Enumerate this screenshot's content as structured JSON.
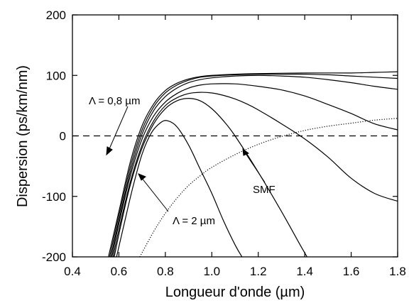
{
  "chart_data": {
    "type": "line",
    "title": "",
    "xlabel": "Longueur d'onde (µm)",
    "ylabel": "Dispersion (ps/km/nm)",
    "xlim": [
      0.4,
      1.8
    ],
    "ylim": [
      -200,
      200
    ],
    "xticks": [
      "0.4",
      "0.6",
      "0.8",
      "1.0",
      "1.2",
      "1.4",
      "1.6",
      "1.8"
    ],
    "yticks": [
      "-200",
      "-100",
      "0",
      "100",
      "200"
    ],
    "grid": false,
    "legend": "none",
    "series": [
      {
        "style": "solid",
        "points": [
          [
            0.59,
            -200
          ],
          [
            0.62,
            -150
          ],
          [
            0.66,
            -85
          ],
          [
            0.7,
            -30
          ],
          [
            0.74,
            5
          ],
          [
            0.78,
            22
          ],
          [
            0.81,
            25
          ],
          [
            0.85,
            15
          ],
          [
            0.9,
            -15
          ],
          [
            0.95,
            -55
          ],
          [
            1.0,
            -95
          ],
          [
            1.05,
            -140
          ],
          [
            1.1,
            -180
          ],
          [
            1.13,
            -200
          ]
        ]
      },
      {
        "style": "solid",
        "points": [
          [
            0.58,
            -200
          ],
          [
            0.61,
            -145
          ],
          [
            0.65,
            -80
          ],
          [
            0.7,
            -20
          ],
          [
            0.75,
            20
          ],
          [
            0.8,
            45
          ],
          [
            0.85,
            58
          ],
          [
            0.9,
            62
          ],
          [
            0.95,
            58
          ],
          [
            1.0,
            45
          ],
          [
            1.05,
            25
          ],
          [
            1.1,
            0
          ],
          [
            1.2,
            -60
          ],
          [
            1.3,
            -125
          ],
          [
            1.38,
            -180
          ],
          [
            1.41,
            -200
          ]
        ]
      },
      {
        "style": "solid",
        "points": [
          [
            0.575,
            -200
          ],
          [
            0.6,
            -155
          ],
          [
            0.65,
            -75
          ],
          [
            0.7,
            -15
          ],
          [
            0.75,
            25
          ],
          [
            0.8,
            50
          ],
          [
            0.85,
            63
          ],
          [
            0.9,
            70
          ],
          [
            0.95,
            72
          ],
          [
            1.0,
            71
          ],
          [
            1.05,
            67
          ],
          [
            1.1,
            61
          ],
          [
            1.15,
            53
          ],
          [
            1.2,
            43
          ],
          [
            1.3,
            20
          ],
          [
            1.4,
            -5
          ],
          [
            1.5,
            -35
          ],
          [
            1.6,
            -70
          ],
          [
            1.7,
            -95
          ],
          [
            1.8,
            -108
          ]
        ]
      },
      {
        "style": "solid",
        "points": [
          [
            0.57,
            -200
          ],
          [
            0.6,
            -145
          ],
          [
            0.65,
            -65
          ],
          [
            0.7,
            -5
          ],
          [
            0.75,
            33
          ],
          [
            0.8,
            56
          ],
          [
            0.85,
            70
          ],
          [
            0.9,
            79
          ],
          [
            0.95,
            84
          ],
          [
            1.0,
            86
          ],
          [
            1.1,
            86
          ],
          [
            1.2,
            82
          ],
          [
            1.3,
            76
          ],
          [
            1.4,
            66
          ],
          [
            1.5,
            52
          ],
          [
            1.6,
            37
          ],
          [
            1.7,
            20
          ],
          [
            1.8,
            10
          ]
        ]
      },
      {
        "style": "solid",
        "points": [
          [
            0.565,
            -200
          ],
          [
            0.6,
            -140
          ],
          [
            0.65,
            -58
          ],
          [
            0.7,
            3
          ],
          [
            0.75,
            42
          ],
          [
            0.8,
            65
          ],
          [
            0.85,
            79
          ],
          [
            0.9,
            88
          ],
          [
            0.95,
            93
          ],
          [
            1.0,
            96
          ],
          [
            1.1,
            99
          ],
          [
            1.2,
            100
          ],
          [
            1.3,
            99
          ],
          [
            1.4,
            97
          ],
          [
            1.5,
            93
          ],
          [
            1.6,
            88
          ],
          [
            1.7,
            82
          ],
          [
            1.8,
            77
          ]
        ]
      },
      {
        "style": "solid",
        "points": [
          [
            0.56,
            -200
          ],
          [
            0.6,
            -132
          ],
          [
            0.65,
            -50
          ],
          [
            0.7,
            10
          ],
          [
            0.75,
            48
          ],
          [
            0.8,
            71
          ],
          [
            0.85,
            84
          ],
          [
            0.9,
            92
          ],
          [
            0.95,
            97
          ],
          [
            1.0,
            99
          ],
          [
            1.1,
            101
          ],
          [
            1.2,
            102
          ],
          [
            1.3,
            102
          ],
          [
            1.4,
            102
          ],
          [
            1.5,
            101
          ],
          [
            1.6,
            99
          ],
          [
            1.7,
            97
          ],
          [
            1.8,
            95
          ]
        ]
      },
      {
        "style": "solid",
        "points": [
          [
            0.555,
            -200
          ],
          [
            0.6,
            -125
          ],
          [
            0.65,
            -42
          ],
          [
            0.7,
            17
          ],
          [
            0.75,
            53
          ],
          [
            0.8,
            75
          ],
          [
            0.85,
            87
          ],
          [
            0.9,
            94
          ],
          [
            0.95,
            98
          ],
          [
            1.0,
            100
          ],
          [
            1.1,
            102
          ],
          [
            1.2,
            103
          ],
          [
            1.4,
            104
          ],
          [
            1.6,
            104
          ],
          [
            1.7,
            105
          ],
          [
            1.8,
            106
          ]
        ]
      },
      {
        "style": "dotted",
        "name": "SMF",
        "points": [
          [
            0.69,
            -200
          ],
          [
            0.75,
            -158
          ],
          [
            0.8,
            -128
          ],
          [
            0.85,
            -103
          ],
          [
            0.9,
            -82
          ],
          [
            0.95,
            -66
          ],
          [
            1.0,
            -52
          ],
          [
            1.1,
            -31
          ],
          [
            1.2,
            -14
          ],
          [
            1.3,
            -1
          ],
          [
            1.4,
            9
          ],
          [
            1.5,
            16
          ],
          [
            1.6,
            21
          ],
          [
            1.7,
            26
          ],
          [
            1.8,
            29
          ]
        ]
      },
      {
        "style": "dashed",
        "points": [
          [
            0.4,
            0
          ],
          [
            1.8,
            0
          ]
        ]
      }
    ],
    "annotations": [
      {
        "text": "Λ = 0,8 µm"
      },
      {
        "text": "Λ = 2 µm"
      },
      {
        "text": "SMF"
      }
    ]
  }
}
